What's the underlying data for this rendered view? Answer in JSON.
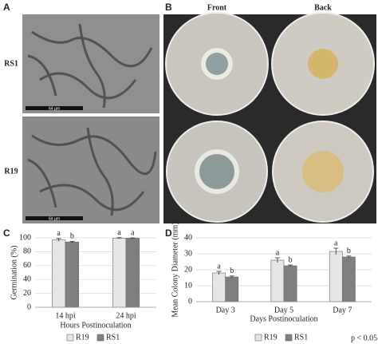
{
  "figure": {
    "panel_labels": [
      "A",
      "B",
      "C",
      "D"
    ],
    "row_labels": [
      "RS1",
      "R19"
    ],
    "column_labels": [
      "Front",
      "Back"
    ],
    "scale_bars": [
      "64 µm",
      "64 µm"
    ],
    "note": "p < 0.05"
  },
  "chart_data": [
    {
      "type": "bar",
      "categories": [
        "14 hpi",
        "24 hpi"
      ],
      "y_label": "Germination (%)",
      "x_label": "Hours Postinoculation",
      "ylim": [
        0,
        100
      ],
      "yticks": [
        0,
        20,
        40,
        60,
        80,
        100
      ],
      "grid": true,
      "legend": "bottom",
      "series": [
        {
          "name": "R19",
          "color": "#e6e6e6",
          "values": [
            97,
            99.5
          ],
          "errors": [
            2,
            0.8
          ],
          "letters": [
            "a",
            "a"
          ]
        },
        {
          "name": "RS1",
          "color": "#7f7f7f",
          "values": [
            94,
            99.5
          ],
          "errors": [
            1,
            0.5
          ],
          "letters": [
            "b",
            "a"
          ]
        }
      ]
    },
    {
      "type": "bar",
      "categories": [
        "Day 3",
        "Day 5",
        "Day 7"
      ],
      "y_label": "Mean Colony Diameter (mm)",
      "x_label": "Days Postinoculation",
      "ylim": [
        0,
        40
      ],
      "yticks": [
        0,
        10,
        20,
        30,
        40
      ],
      "grid": true,
      "legend": "bottom",
      "series": [
        {
          "name": "R19",
          "color": "#e6e6e6",
          "values": [
            18,
            26,
            31.5
          ],
          "errors": [
            1,
            1.5,
            2
          ],
          "letters": [
            "a",
            "a",
            "a"
          ]
        },
        {
          "name": "RS1",
          "color": "#7f7f7f",
          "values": [
            15.5,
            22.5,
            28
          ],
          "errors": [
            0.6,
            0.5,
            0.6
          ],
          "letters": [
            "b",
            "b",
            "b"
          ]
        }
      ]
    }
  ]
}
